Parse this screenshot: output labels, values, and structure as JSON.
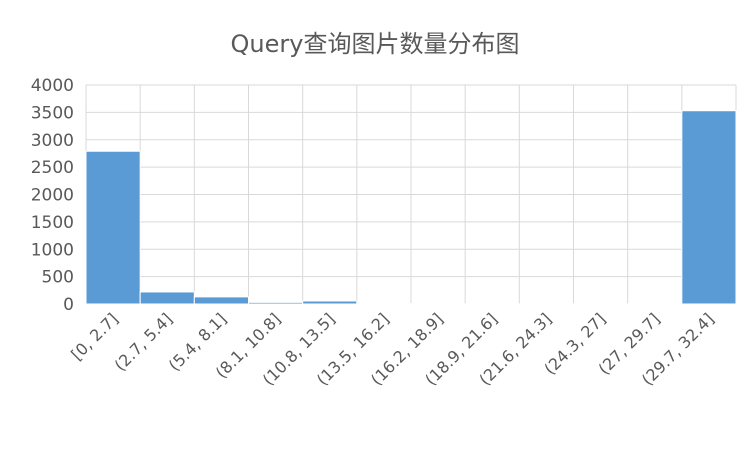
{
  "chart_data": {
    "type": "bar",
    "title": "Query查询图片数量分布图",
    "xlabel": "",
    "ylabel": "",
    "categories": [
      "[0, 2.7]",
      "(2.7, 5.4]",
      "(5.4, 8.1]",
      "(8.1, 10.8]",
      "(10.8, 13.5]",
      "(13.5, 16.2]",
      "(16.2, 18.9]",
      "(18.9, 21.6]",
      "(21.6, 24.3]",
      "(24.3, 27]",
      "(27, 29.7]",
      "(29.7, 32.4]"
    ],
    "values": [
      2790,
      220,
      130,
      30,
      55,
      5,
      3,
      2,
      2,
      2,
      2,
      3530
    ],
    "ylim": [
      0,
      4000
    ],
    "yticks": [
      "0",
      "500",
      "1000",
      "1500",
      "2000",
      "2500",
      "3000",
      "3500",
      "4000"
    ],
    "grid": true,
    "legend": "none",
    "bar_color": "#5b9bd5",
    "grid_color": "#d9d9d9",
    "text_color": "#595959"
  }
}
